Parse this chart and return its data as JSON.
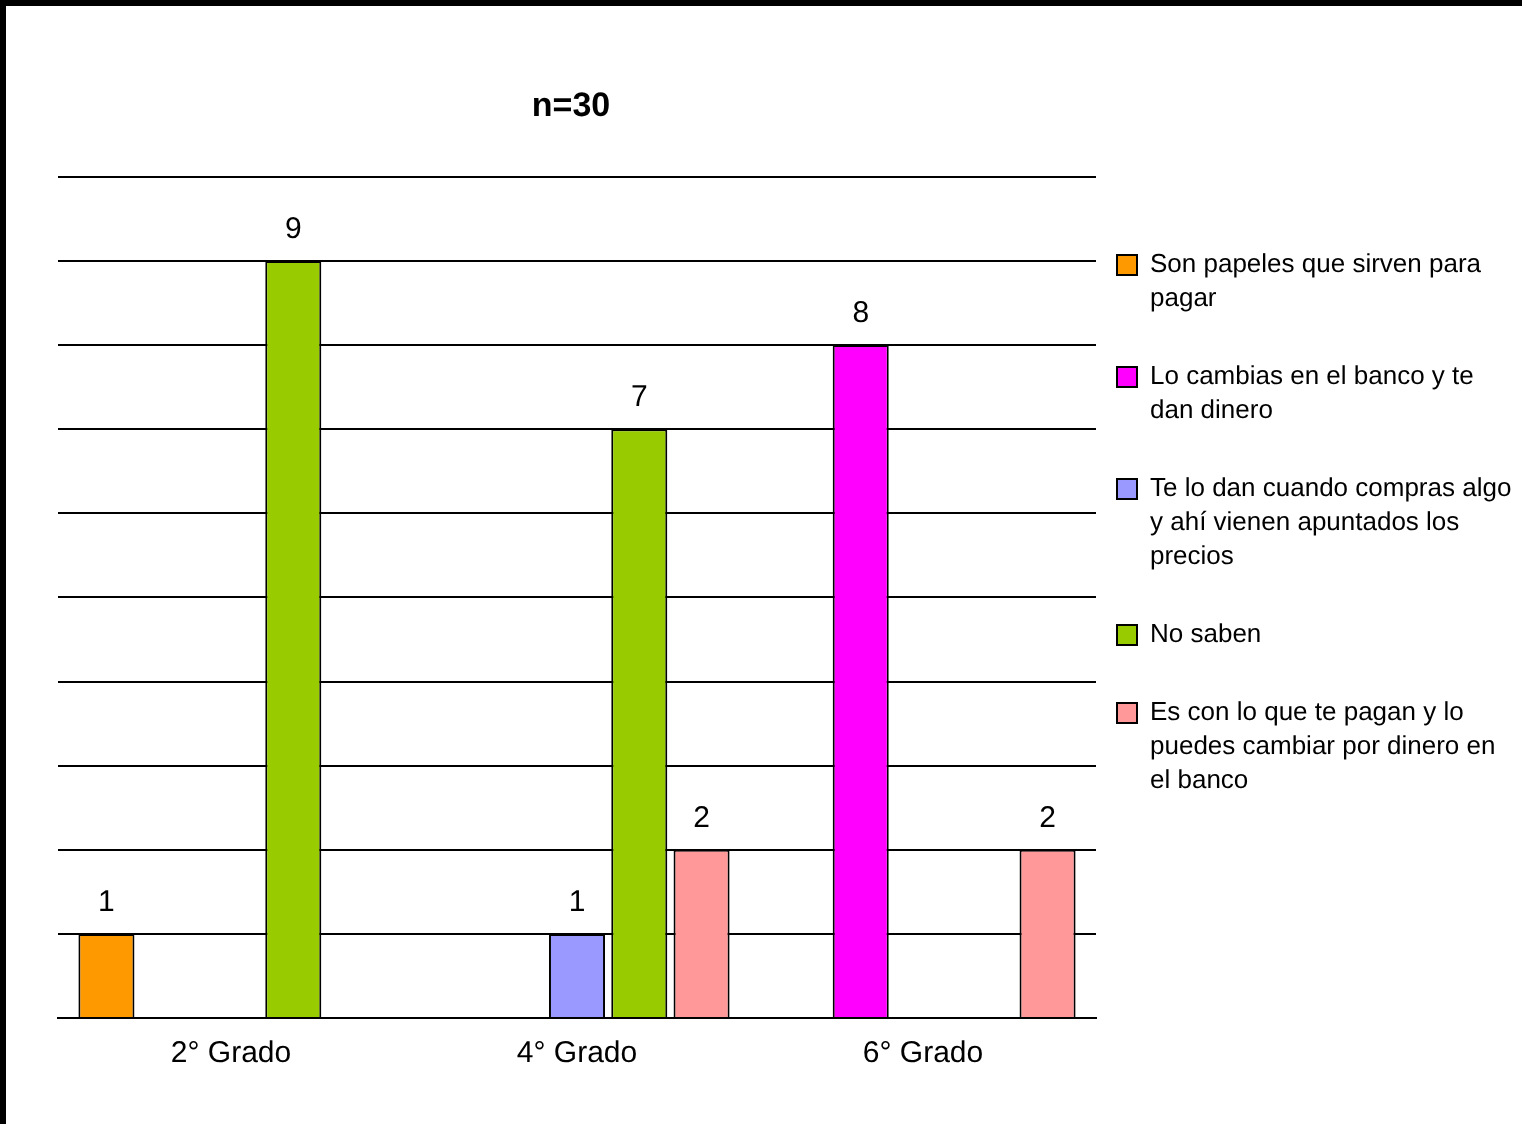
{
  "chart_data": {
    "type": "bar",
    "title": "n=30",
    "categories": [
      "2° Grado",
      "4° Grado",
      "6° Grado"
    ],
    "series": [
      {
        "name": "Son papeles que sirven para pagar",
        "color": "#ff9900",
        "values": [
          1,
          null,
          null
        ]
      },
      {
        "name": "Lo cambias en el banco y te dan dinero",
        "color": "#ff00ff",
        "values": [
          null,
          null,
          8
        ]
      },
      {
        "name": "Te lo dan cuando compras algo y ahí vienen apuntados los precios",
        "color": "#9999ff",
        "values": [
          null,
          1,
          null
        ]
      },
      {
        "name": "No saben",
        "color": "#99cc00",
        "values": [
          9,
          7,
          null
        ]
      },
      {
        "name": "Es con lo que te pagan y lo puedes cambiar por dinero en el banco",
        "color": "#ff9999",
        "values": [
          null,
          2,
          2
        ]
      }
    ],
    "ylim": [
      0,
      10
    ],
    "yticks": [
      {
        "value": 0,
        "label": null
      },
      {
        "value": 1,
        "label": null
      },
      {
        "value": 2,
        "label": null
      },
      {
        "value": 3,
        "label": null
      },
      {
        "value": 4,
        "label": null
      },
      {
        "value": 5,
        "label": null
      },
      {
        "value": 6,
        "label": null
      },
      {
        "value": 7,
        "label": null
      },
      {
        "value": 8,
        "label": null
      },
      {
        "value": 9,
        "label": null
      },
      {
        "value": 10,
        "label": null
      }
    ],
    "tick_labels": "x",
    "grid": "y",
    "legend": "right",
    "data_labels": true
  }
}
